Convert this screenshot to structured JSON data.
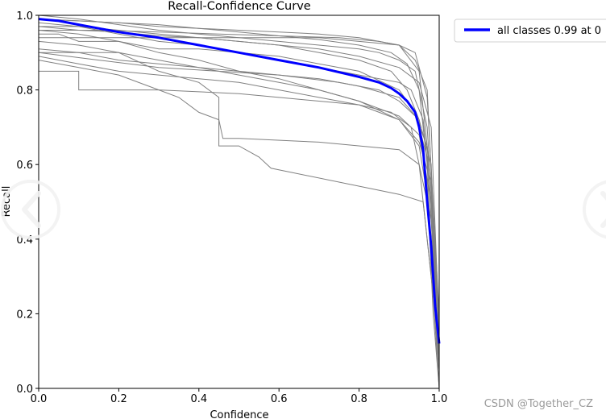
{
  "chart_data": {
    "type": "line",
    "title": "Recall-Confidence Curve",
    "xlabel": "Confidence",
    "ylabel": "Recall",
    "xlim": [
      0,
      1
    ],
    "ylim": [
      0,
      1
    ],
    "xticks": [
      "0.0",
      "0.2",
      "0.4",
      "0.6",
      "0.8",
      "1.0"
    ],
    "yticks": [
      "0.0",
      "0.2",
      "0.4",
      "0.6",
      "0.8",
      "1.0"
    ],
    "grid": false,
    "legend_position": "outside-top-right",
    "series": [
      {
        "name": "all classes 0.99 at 0",
        "color": "#0000ff",
        "x": [
          0.0,
          0.05,
          0.1,
          0.15,
          0.2,
          0.3,
          0.4,
          0.5,
          0.6,
          0.7,
          0.8,
          0.85,
          0.88,
          0.9,
          0.92,
          0.94,
          0.95,
          0.96,
          0.97,
          0.98,
          0.99,
          1.0
        ],
        "y": [
          0.99,
          0.985,
          0.975,
          0.965,
          0.955,
          0.94,
          0.92,
          0.9,
          0.88,
          0.86,
          0.835,
          0.82,
          0.805,
          0.79,
          0.77,
          0.74,
          0.7,
          0.64,
          0.5,
          0.38,
          0.22,
          0.12
        ]
      }
    ],
    "background_series_note_color": "#808080",
    "class_curves": [
      {
        "x": [
          0,
          0.1,
          0.2,
          0.3,
          0.4,
          0.5,
          0.6,
          0.7,
          0.8,
          0.88,
          0.92,
          0.95,
          0.97,
          0.985,
          1.0
        ],
        "y": [
          0.99,
          0.985,
          0.98,
          0.975,
          0.965,
          0.955,
          0.945,
          0.935,
          0.92,
          0.9,
          0.87,
          0.8,
          0.6,
          0.25,
          0.0
        ]
      },
      {
        "x": [
          0,
          0.1,
          0.2,
          0.3,
          0.4,
          0.5,
          0.6,
          0.7,
          0.8,
          0.88,
          0.92,
          0.95,
          0.97,
          0.985,
          1.0
        ],
        "y": [
          0.97,
          0.96,
          0.955,
          0.945,
          0.94,
          0.93,
          0.92,
          0.9,
          0.88,
          0.85,
          0.8,
          0.72,
          0.55,
          0.2,
          0.0
        ]
      },
      {
        "x": [
          0,
          0.05,
          0.1,
          0.2,
          0.3,
          0.4,
          0.5,
          0.6,
          0.7,
          0.8,
          0.9,
          0.94,
          0.97,
          0.99,
          1.0
        ],
        "y": [
          0.95,
          0.95,
          0.93,
          0.93,
          0.91,
          0.91,
          0.9,
          0.89,
          0.87,
          0.85,
          0.8,
          0.74,
          0.62,
          0.3,
          0.05
        ]
      },
      {
        "x": [
          0,
          0.1,
          0.2,
          0.3,
          0.4,
          0.5,
          0.6,
          0.7,
          0.8,
          0.85,
          0.9,
          0.94,
          0.97,
          0.99,
          1.0
        ],
        "y": [
          1.0,
          0.99,
          0.975,
          0.96,
          0.95,
          0.94,
          0.93,
          0.92,
          0.91,
          0.9,
          0.88,
          0.85,
          0.7,
          0.35,
          0.08
        ]
      },
      {
        "x": [
          0,
          0.1,
          0.2,
          0.3,
          0.4,
          0.5,
          0.6,
          0.7,
          0.8,
          0.9,
          0.93,
          0.96,
          0.98,
          1.0
        ],
        "y": [
          0.98,
          0.97,
          0.95,
          0.93,
          0.92,
          0.9,
          0.88,
          0.86,
          0.84,
          0.82,
          0.8,
          0.72,
          0.5,
          0.1
        ]
      },
      {
        "x": [
          0,
          0.1,
          0.2,
          0.3,
          0.4,
          0.5,
          0.6,
          0.7,
          0.8,
          0.9,
          0.95,
          0.98,
          1.0
        ],
        "y": [
          0.94,
          0.94,
          0.94,
          0.94,
          0.94,
          0.94,
          0.94,
          0.94,
          0.93,
          0.92,
          0.85,
          0.55,
          0.1
        ]
      },
      {
        "x": [
          0,
          0.1,
          0.2,
          0.3,
          0.4,
          0.5,
          0.6,
          0.7,
          0.8,
          0.9,
          0.95,
          0.98,
          1.0
        ],
        "y": [
          0.93,
          0.92,
          0.9,
          0.88,
          0.86,
          0.84,
          0.82,
          0.8,
          0.77,
          0.72,
          0.65,
          0.45,
          0.05
        ]
      },
      {
        "x": [
          0,
          0.1,
          0.2,
          0.3,
          0.4,
          0.5,
          0.6,
          0.7,
          0.8,
          0.9,
          0.95,
          0.98,
          1.0
        ],
        "y": [
          0.96,
          0.95,
          0.93,
          0.9,
          0.88,
          0.85,
          0.83,
          0.8,
          0.77,
          0.73,
          0.68,
          0.5,
          0.1
        ]
      },
      {
        "x": [
          0,
          0.1,
          0.1,
          0.3,
          0.5,
          0.6,
          0.7,
          0.8,
          0.88,
          0.93,
          0.97,
          1.0
        ],
        "y": [
          0.85,
          0.85,
          0.8,
          0.8,
          0.79,
          0.78,
          0.77,
          0.76,
          0.74,
          0.7,
          0.5,
          0.05
        ]
      },
      {
        "x": [
          0,
          0.2,
          0.3,
          0.4,
          0.45,
          0.45,
          0.5,
          0.55,
          0.58,
          0.9,
          0.96,
          0.99,
          1.0
        ],
        "y": [
          0.9,
          0.9,
          0.85,
          0.82,
          0.78,
          0.65,
          0.65,
          0.62,
          0.59,
          0.52,
          0.5,
          0.2,
          0.0
        ]
      },
      {
        "x": [
          0,
          0.1,
          0.2,
          0.3,
          0.35,
          0.4,
          0.45,
          0.46,
          0.5,
          0.7,
          0.9,
          0.95,
          1.0
        ],
        "y": [
          0.88,
          0.86,
          0.84,
          0.8,
          0.78,
          0.74,
          0.72,
          0.67,
          0.67,
          0.66,
          0.64,
          0.6,
          0.1
        ]
      },
      {
        "x": [
          0,
          0.2,
          0.3,
          0.4,
          0.5,
          0.6,
          0.7,
          0.8,
          0.85,
          0.9,
          0.94,
          0.97,
          1.0
        ],
        "y": [
          0.99,
          0.98,
          0.97,
          0.965,
          0.96,
          0.955,
          0.95,
          0.94,
          0.93,
          0.92,
          0.88,
          0.8,
          0.15
        ]
      },
      {
        "x": [
          0,
          0.1,
          0.2,
          0.3,
          0.4,
          0.5,
          0.6,
          0.7,
          0.8,
          0.9,
          0.95,
          0.98,
          1.0
        ],
        "y": [
          0.91,
          0.9,
          0.88,
          0.87,
          0.86,
          0.85,
          0.84,
          0.83,
          0.81,
          0.78,
          0.72,
          0.6,
          0.05
        ]
      },
      {
        "x": [
          0,
          0.1,
          0.2,
          0.3,
          0.4,
          0.5,
          0.6,
          0.7,
          0.8,
          0.9,
          0.95,
          0.98,
          1.0
        ],
        "y": [
          0.97,
          0.97,
          0.96,
          0.95,
          0.94,
          0.93,
          0.92,
          0.91,
          0.89,
          0.86,
          0.82,
          0.7,
          0.15
        ]
      },
      {
        "x": [
          0,
          0.1,
          0.2,
          0.3,
          0.4,
          0.5,
          0.6,
          0.7,
          0.8,
          0.9,
          0.95,
          0.98,
          1.0
        ],
        "y": [
          0.89,
          0.87,
          0.85,
          0.84,
          0.83,
          0.82,
          0.8,
          0.78,
          0.76,
          0.72,
          0.66,
          0.55,
          0.1
        ]
      },
      {
        "x": [
          0,
          0.15,
          0.3,
          0.45,
          0.6,
          0.75,
          0.85,
          0.9,
          0.94,
          0.97,
          1.0
        ],
        "y": [
          0.96,
          0.96,
          0.955,
          0.95,
          0.945,
          0.94,
          0.93,
          0.92,
          0.9,
          0.78,
          0.2
        ]
      },
      {
        "x": [
          0,
          0.15,
          0.3,
          0.45,
          0.6,
          0.75,
          0.85,
          0.9,
          0.94,
          0.97,
          1.0
        ],
        "y": [
          0.9,
          0.88,
          0.86,
          0.85,
          0.84,
          0.82,
          0.8,
          0.77,
          0.73,
          0.65,
          0.08
        ]
      }
    ]
  },
  "legend": {
    "label": "all classes 0.99 at 0"
  },
  "watermark": {
    "text": "CSDN @Together_CZ"
  },
  "overlay": {
    "prev_icon": "chevron-left-circle-icon",
    "next_icon": "chevron-right-circle-icon"
  }
}
